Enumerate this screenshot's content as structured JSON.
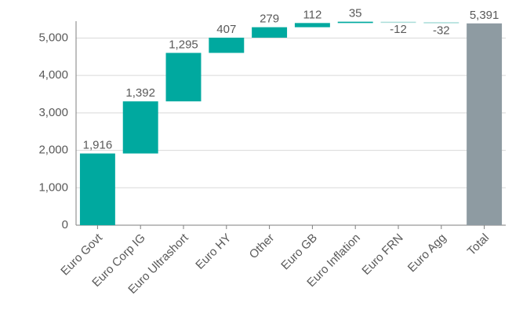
{
  "chart_data": {
    "type": "waterfall",
    "categories": [
      "Euro Govt",
      "Euro Corp IG",
      "Euro Ultrashort",
      "Euro HY",
      "Other",
      "Euro GB",
      "Euro Inflation",
      "Euro FRN",
      "Euro Agg",
      "Total"
    ],
    "values": [
      1916,
      1392,
      1295,
      407,
      279,
      112,
      35,
      -12,
      -32,
      5391
    ],
    "value_labels": [
      "1,916",
      "1,392",
      "1,295",
      "407",
      "279",
      "112",
      "35",
      "-12",
      "-32",
      "5,391"
    ],
    "is_total": [
      false,
      false,
      false,
      false,
      false,
      false,
      false,
      false,
      false,
      true
    ],
    "color": "#00a99f",
    "negative_color": "#a9ddd9",
    "total_color": "#8e9ba2",
    "ylim": [
      0,
      5450
    ],
    "yticks": [
      0,
      {
        "value": 1000,
        "label": "1,000"
      },
      {
        "value": 2000,
        "label": "2,000"
      },
      {
        "value": 3000,
        "label": "3,000"
      },
      {
        "value": 4000,
        "label": "4,000"
      },
      {
        "value": 5000,
        "label": "5,000"
      }
    ],
    "grid": true
  }
}
